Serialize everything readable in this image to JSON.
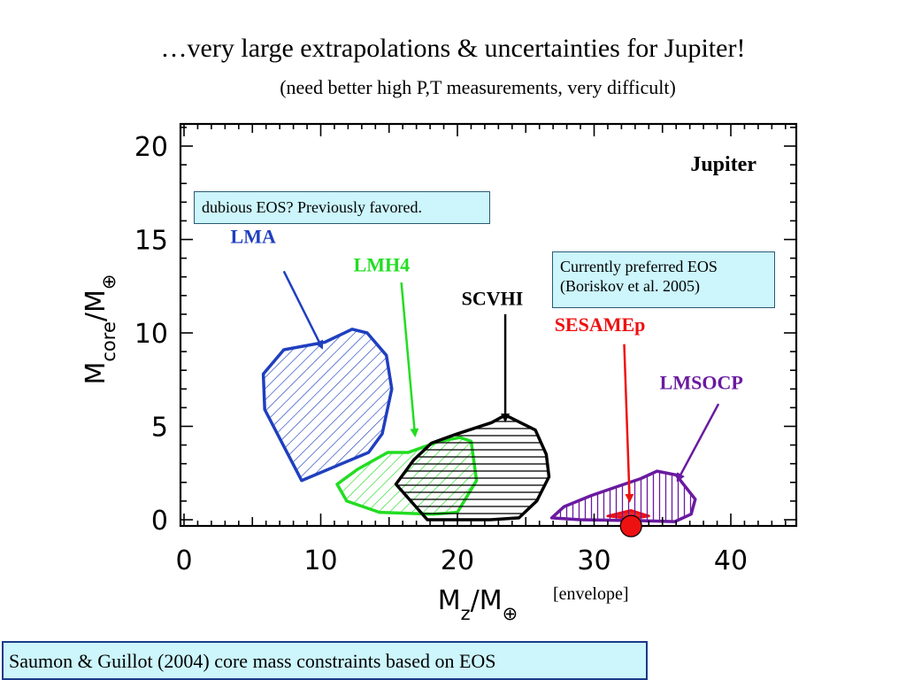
{
  "slide": {
    "title": "…very large extrapolations & uncertainties for Jupiter!",
    "subtitle": "(need better high P,T measurements, very difficult)",
    "note_dubious": "dubious EOS? Previously favored.",
    "note_preferred_line1": "Currently preferred EOS",
    "note_preferred_line2": "(Boriskov et al. 2005)",
    "envelope_label": "[envelope]",
    "caption": "Saumon & Guillot (2004) core mass constraints based on EOS"
  },
  "colors": {
    "LMA": "#1f3fbf",
    "LMH4": "#22dd22",
    "SCVHI": "#000000",
    "SESAMEp": "#ee1111",
    "LMSOCP": "#6a1aa0",
    "marker": "#ee1111",
    "box_bg": "#ccf5fc"
  },
  "chart_data": {
    "type": "area",
    "title": "Jupiter",
    "xlabel": "Mz/M⊕",
    "ylabel": "Mcore/M⊕",
    "xlim": [
      0,
      45
    ],
    "ylim": [
      -0.5,
      21
    ],
    "xticks": [
      0,
      10,
      20,
      30,
      40
    ],
    "yticks": [
      0,
      5,
      10,
      15,
      20
    ],
    "series": [
      {
        "name": "LMA",
        "hatch": "diagonal",
        "label_pos": [
          3.4,
          14.8
        ],
        "arrow": [
          [
            7.3,
            13.3
          ],
          [
            10.1,
            9.2
          ]
        ],
        "points": [
          [
            8.6,
            2.1
          ],
          [
            5.9,
            5.9
          ],
          [
            5.8,
            7.8
          ],
          [
            7.3,
            9.1
          ],
          [
            10.3,
            9.5
          ],
          [
            12.3,
            10.2
          ],
          [
            13.4,
            10.0
          ],
          [
            14.8,
            8.8
          ],
          [
            15.2,
            7.0
          ],
          [
            14.5,
            4.6
          ],
          [
            13.5,
            3.6
          ]
        ]
      },
      {
        "name": "LMH4",
        "hatch": "diagonal",
        "label_pos": [
          12.4,
          13.3
        ],
        "arrow": [
          [
            15.9,
            12.7
          ],
          [
            16.9,
            4.5
          ]
        ],
        "points": [
          [
            11.2,
            1.9
          ],
          [
            11.9,
            1.0
          ],
          [
            14.3,
            0.4
          ],
          [
            18.2,
            0.3
          ],
          [
            20.0,
            0.4
          ],
          [
            21.4,
            2.1
          ],
          [
            21.0,
            4.2
          ],
          [
            20.2,
            4.4
          ],
          [
            18.7,
            4.2
          ],
          [
            16.4,
            3.6
          ],
          [
            14.9,
            3.6
          ],
          [
            12.7,
            2.7
          ]
        ]
      },
      {
        "name": "SCVHI",
        "hatch": "horizontal",
        "label_pos": [
          20.3,
          11.5
        ],
        "arrow": [
          [
            23.5,
            11.0
          ],
          [
            23.5,
            5.3
          ]
        ],
        "points": [
          [
            15.5,
            1.9
          ],
          [
            16.8,
            3.2
          ],
          [
            18.1,
            4.1
          ],
          [
            20.0,
            4.6
          ],
          [
            22.5,
            5.2
          ],
          [
            23.5,
            5.6
          ],
          [
            25.7,
            4.8
          ],
          [
            26.5,
            3.5
          ],
          [
            26.7,
            2.3
          ],
          [
            25.8,
            1.0
          ],
          [
            24.5,
            0.1
          ],
          [
            22.4,
            0.0
          ],
          [
            17.8,
            0.0
          ]
        ]
      },
      {
        "name": "SESAMEp",
        "hatch": "none",
        "label_pos": [
          27.1,
          10.1
        ],
        "arrow": [
          [
            32.2,
            9.4
          ],
          [
            32.6,
            1.0
          ]
        ],
        "points": [
          [
            31.0,
            0.2
          ],
          [
            32.7,
            0.5
          ],
          [
            34.0,
            0.2
          ],
          [
            32.7,
            0.05
          ]
        ]
      },
      {
        "name": "LMSOCP",
        "hatch": "vertical",
        "label_pos": [
          34.8,
          7.0
        ],
        "arrow": [
          [
            39.1,
            6.2
          ],
          [
            36.1,
            2.1
          ]
        ],
        "points": [
          [
            26.9,
            0.1
          ],
          [
            27.8,
            0.7
          ],
          [
            29.8,
            1.3
          ],
          [
            31.8,
            1.8
          ],
          [
            33.4,
            2.2
          ],
          [
            34.6,
            2.6
          ],
          [
            36.0,
            2.4
          ],
          [
            37.4,
            1.1
          ],
          [
            37.1,
            0.3
          ],
          [
            35.9,
            -0.1
          ],
          [
            33.5,
            -0.05
          ],
          [
            29.0,
            0.0
          ]
        ]
      }
    ],
    "marker": {
      "x": 32.7,
      "y": -0.15
    }
  }
}
